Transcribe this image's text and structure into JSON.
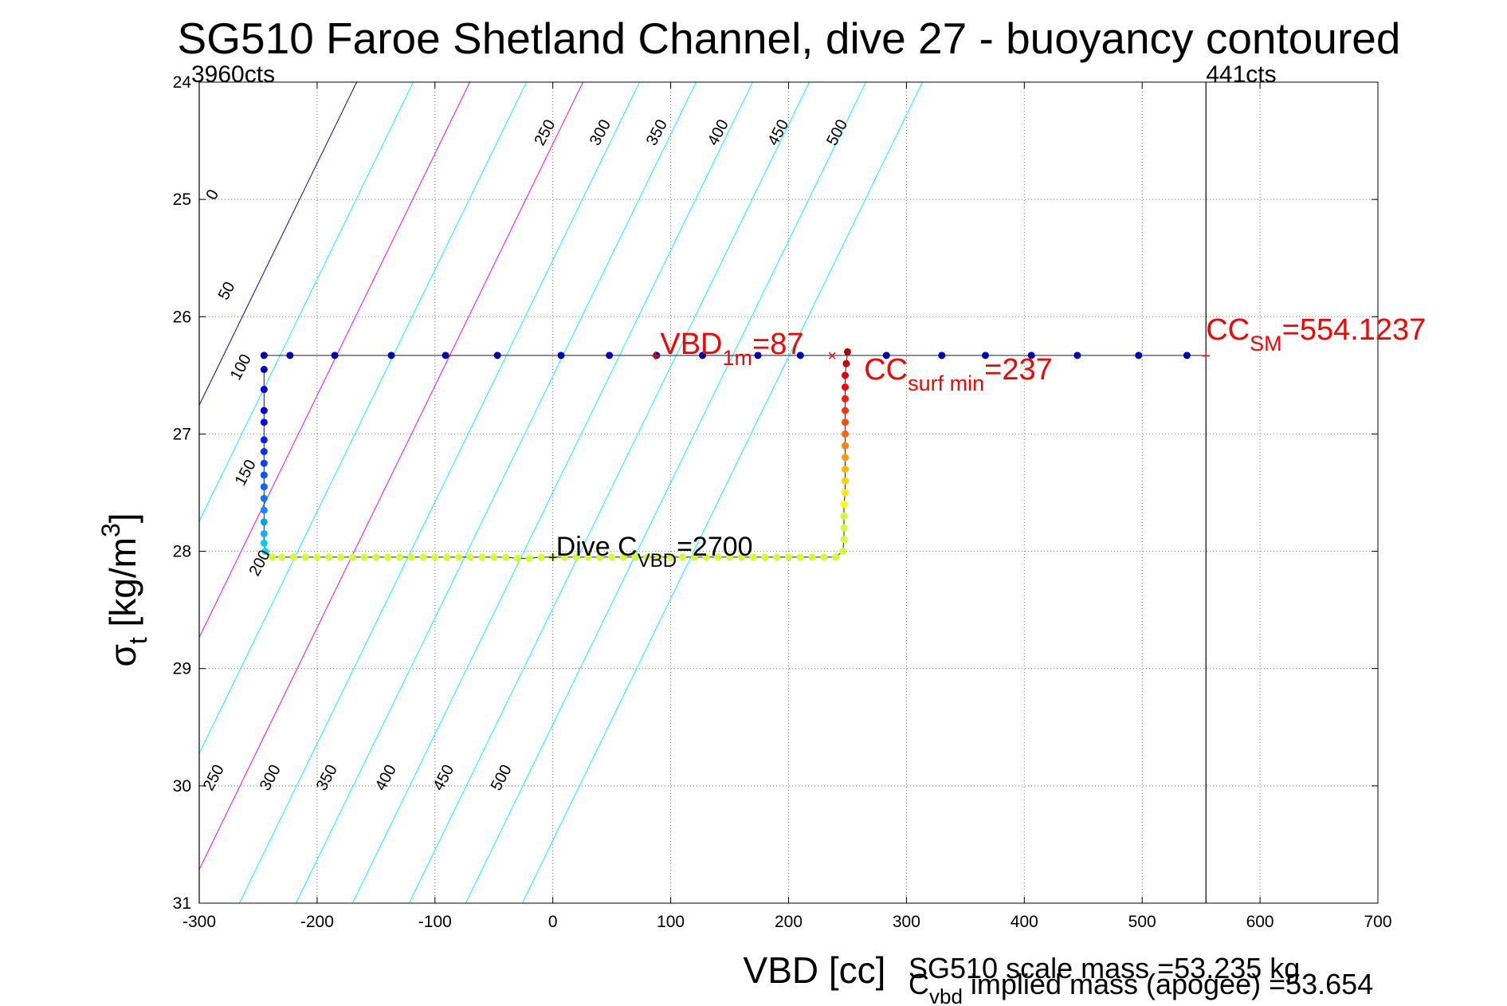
{
  "chart_data": {
    "type": "scatter",
    "title": "SG510 Faroe Shetland Channel, dive 27 - buoyancy contoured",
    "xlabel": "VBD [cc]",
    "ylabel": {
      "sigma": "σ",
      "sub": "t",
      "units": " [kg/m",
      "sup": "3",
      "close": "]"
    },
    "xlim": [
      -300,
      700
    ],
    "ylim": [
      31,
      24
    ],
    "x_ticks": [
      "-300",
      "-200",
      "-100",
      "0",
      "100",
      "200",
      "300",
      "400",
      "500",
      "600",
      "700"
    ],
    "y_ticks": [
      "24",
      "25",
      "26",
      "27",
      "28",
      "29",
      "30",
      "31"
    ],
    "grid": true,
    "contours": {
      "levels": [
        0,
        50,
        100,
        150,
        200,
        250,
        300,
        350,
        400,
        450,
        500
      ],
      "line_colors": {
        "0": "#0000cc",
        "100": "#ff00ff",
        "200": "#ff00ff",
        "default": "#00ffff"
      },
      "upper_labels": [
        {
          "text": "0",
          "x": -285,
          "y": 24.98
        },
        {
          "text": "50",
          "x": -273,
          "y": 25.8
        },
        {
          "text": "100",
          "x": -261,
          "y": 26.45
        },
        {
          "text": "150",
          "x": -257,
          "y": 27.35
        },
        {
          "text": "200",
          "x": -245,
          "y": 28.12
        },
        {
          "text": "250",
          "x": -3,
          "y": 24.45
        },
        {
          "text": "300",
          "x": 44,
          "y": 24.45
        },
        {
          "text": "350",
          "x": 92,
          "y": 24.45
        },
        {
          "text": "400",
          "x": 144,
          "y": 24.45
        },
        {
          "text": "450",
          "x": 195,
          "y": 24.45
        },
        {
          "text": "500",
          "x": 245,
          "y": 24.45
        }
      ],
      "lower_labels": [
        {
          "text": "250",
          "x": -284,
          "y": 29.95
        },
        {
          "text": "300",
          "x": -236,
          "y": 29.95
        },
        {
          "text": "350",
          "x": -188,
          "y": 29.95
        },
        {
          "text": "400",
          "x": -138,
          "y": 29.95
        },
        {
          "text": "450",
          "x": -89,
          "y": 29.95
        },
        {
          "text": "500",
          "x": -40,
          "y": 29.95
        }
      ]
    },
    "series": [
      {
        "points": [
          [
            -245,
            26.33
          ],
          [
            -223,
            26.33
          ],
          [
            -185,
            26.33
          ],
          [
            -137,
            26.33
          ],
          [
            -91,
            26.33
          ],
          [
            -47,
            26.33
          ],
          [
            7,
            26.33
          ],
          [
            48,
            26.33
          ],
          [
            88,
            26.33
          ],
          [
            127,
            26.33
          ],
          [
            174,
            26.33
          ],
          [
            210,
            26.33
          ],
          [
            283,
            26.33
          ],
          [
            330,
            26.33
          ],
          [
            367,
            26.33
          ],
          [
            406,
            26.33
          ],
          [
            445,
            26.33
          ],
          [
            497,
            26.33
          ],
          [
            538,
            26.33
          ],
          [
            -245,
            26.45
          ],
          [
            -245,
            26.62
          ],
          [
            -245,
            26.8
          ],
          [
            -245,
            26.9
          ],
          [
            -245,
            27.05
          ],
          [
            -245,
            27.15
          ],
          [
            -245,
            27.25
          ],
          [
            -245,
            27.35
          ],
          [
            -245,
            27.45
          ],
          [
            -245,
            27.55
          ],
          [
            -245,
            27.65
          ],
          [
            -245,
            27.75
          ],
          [
            -245,
            27.85
          ],
          [
            -245,
            27.93
          ],
          [
            -244,
            28.0
          ],
          [
            -238,
            28.05
          ],
          [
            -230,
            28.05
          ],
          [
            -220,
            28.05
          ],
          [
            -210,
            28.05
          ],
          [
            -200,
            28.05
          ],
          [
            -190,
            28.05
          ],
          [
            -180,
            28.05
          ],
          [
            -170,
            28.05
          ],
          [
            -160,
            28.05
          ],
          [
            -150,
            28.05
          ],
          [
            -140,
            28.05
          ],
          [
            -130,
            28.05
          ],
          [
            -120,
            28.05
          ],
          [
            -110,
            28.05
          ],
          [
            -100,
            28.05
          ],
          [
            -90,
            28.05
          ],
          [
            -80,
            28.05
          ],
          [
            -70,
            28.05
          ],
          [
            -60,
            28.05
          ],
          [
            -50,
            28.05
          ],
          [
            -40,
            28.05
          ],
          [
            -30,
            28.06
          ],
          [
            -20,
            28.06
          ],
          [
            -10,
            28.05
          ],
          [
            0,
            28.05
          ],
          [
            10,
            28.05
          ],
          [
            20,
            28.05
          ],
          [
            30,
            28.05
          ],
          [
            40,
            28.05
          ],
          [
            50,
            28.05
          ],
          [
            60,
            28.05
          ],
          [
            70,
            28.05
          ],
          [
            80,
            28.05
          ],
          [
            90,
            28.05
          ],
          [
            100,
            28.05
          ],
          [
            110,
            28.05
          ],
          [
            120,
            28.05
          ],
          [
            130,
            28.05
          ],
          [
            140,
            28.05
          ],
          [
            150,
            28.05
          ],
          [
            160,
            28.05
          ],
          [
            170,
            28.05
          ],
          [
            180,
            28.05
          ],
          [
            190,
            28.05
          ],
          [
            200,
            28.05
          ],
          [
            210,
            28.05
          ],
          [
            220,
            28.05
          ],
          [
            230,
            28.05
          ],
          [
            240,
            28.05
          ],
          [
            246,
            28.0
          ],
          [
            247,
            27.9
          ],
          [
            247,
            27.8
          ],
          [
            247,
            27.7
          ],
          [
            247,
            27.6
          ],
          [
            248,
            27.5
          ],
          [
            248,
            27.4
          ],
          [
            248,
            27.3
          ],
          [
            248,
            27.2
          ],
          [
            248,
            27.1
          ],
          [
            248,
            27.0
          ],
          [
            248,
            26.9
          ],
          [
            248,
            26.8
          ],
          [
            248,
            26.7
          ],
          [
            248,
            26.6
          ],
          [
            248,
            26.5
          ],
          [
            249,
            26.4
          ],
          [
            250,
            26.3
          ]
        ]
      }
    ],
    "reference_lines": [
      {
        "label": "3960cts",
        "x": -300
      },
      {
        "label": "441cts",
        "x": 554.1237
      }
    ],
    "annotations": [
      {
        "base": "VBD",
        "sub": "1m",
        "rest": "=87",
        "x": 87,
        "y": 26.33,
        "color": "#ff0000"
      },
      {
        "base": "CC",
        "sub": "surf min",
        "rest": "=237",
        "x": 237,
        "y": 26.33,
        "color": "#ff0000"
      },
      {
        "base": "CC",
        "sub": "SM",
        "rest": "=554.1237",
        "x": 554.1237,
        "y": 26.33,
        "color": "#ff0000"
      },
      {
        "base": "Dive C",
        "sub": "VBD",
        "rest": "=2700",
        "x": 0,
        "y": 28.05,
        "color": "#000000"
      }
    ],
    "footer": [
      {
        "text": "SG510 scale mass =53.235 kg"
      },
      {
        "base": "C",
        "sub": "vbd",
        "rest": " implied mass (apogee) =53.654"
      }
    ]
  }
}
